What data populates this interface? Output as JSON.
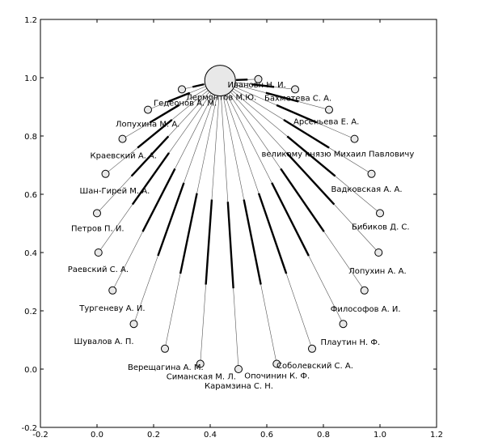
{
  "chart_data": {
    "type": "network",
    "xlim": [
      -0.2,
      1.2
    ],
    "ylim": [
      -0.2,
      1.2
    ],
    "xticks": [
      "-0.2",
      "0.0",
      "0.2",
      "0.4",
      "0.6",
      "0.8",
      "1.0",
      "1.2"
    ],
    "yticks": [
      "-0.2",
      "0.0",
      "0.2",
      "0.4",
      "0.6",
      "0.8",
      "1.0",
      "1.2"
    ],
    "grid": false,
    "center": {
      "label": "Лермонтов М.Ю.",
      "x": 0.435,
      "y": 0.99
    },
    "nodes": [
      {
        "label": "Ивановн Н. И.",
        "x": 0.57,
        "y": 0.995,
        "weight": 1
      },
      {
        "label": "Бахметева С. А.",
        "x": 0.7,
        "y": 0.96,
        "weight": 2
      },
      {
        "label": "Арсеньева Е. А.",
        "x": 0.82,
        "y": 0.89,
        "weight": 1
      },
      {
        "label": "великому князю Михаил Павловичу",
        "x": 0.91,
        "y": 0.79,
        "weight": 1
      },
      {
        "label": "Вадковская А. А.",
        "x": 0.97,
        "y": 0.67,
        "weight": 1
      },
      {
        "label": "Бибиков Д. С.",
        "x": 1.0,
        "y": 0.535,
        "weight": 1
      },
      {
        "label": "Лопухин А. А.",
        "x": 0.995,
        "y": 0.4,
        "weight": 2
      },
      {
        "label": "Философов А. И.",
        "x": 0.945,
        "y": 0.27,
        "weight": 2
      },
      {
        "label": "Плаутин Н. Ф.",
        "x": 0.87,
        "y": 0.155,
        "weight": 2
      },
      {
        "label": "Соболевский С. А.",
        "x": 0.76,
        "y": 0.07,
        "weight": 1
      },
      {
        "label": "Опочинин К. Ф.",
        "x": 0.635,
        "y": 0.018,
        "weight": 1
      },
      {
        "label": "Карамзина С. Н.",
        "x": 0.5,
        "y": 0.0,
        "weight": 1
      },
      {
        "label": "Симанская М. Л.",
        "x": 0.365,
        "y": 0.018,
        "weight": 1
      },
      {
        "label": "Верещагина А. М.",
        "x": 0.24,
        "y": 0.07,
        "weight": 2
      },
      {
        "label": "Шувалов А. П.",
        "x": 0.13,
        "y": 0.155,
        "weight": 1
      },
      {
        "label": "Тургеневу А. И.",
        "x": 0.055,
        "y": 0.27,
        "weight": 1
      },
      {
        "label": "Раевский С. А.",
        "x": 0.005,
        "y": 0.4,
        "weight": 1
      },
      {
        "label": "Петров П. И.",
        "x": 0.0,
        "y": 0.535,
        "weight": 1
      },
      {
        "label": "Шан-Гирей М. А.",
        "x": 0.03,
        "y": 0.67,
        "weight": 1
      },
      {
        "label": "Краевский А. А.",
        "x": 0.09,
        "y": 0.79,
        "weight": 1
      },
      {
        "label": "Лопухина М. А.",
        "x": 0.18,
        "y": 0.89,
        "weight": 1
      },
      {
        "label": "Гедеонов А. М.",
        "x": 0.3,
        "y": 0.96,
        "weight": 2
      }
    ]
  }
}
